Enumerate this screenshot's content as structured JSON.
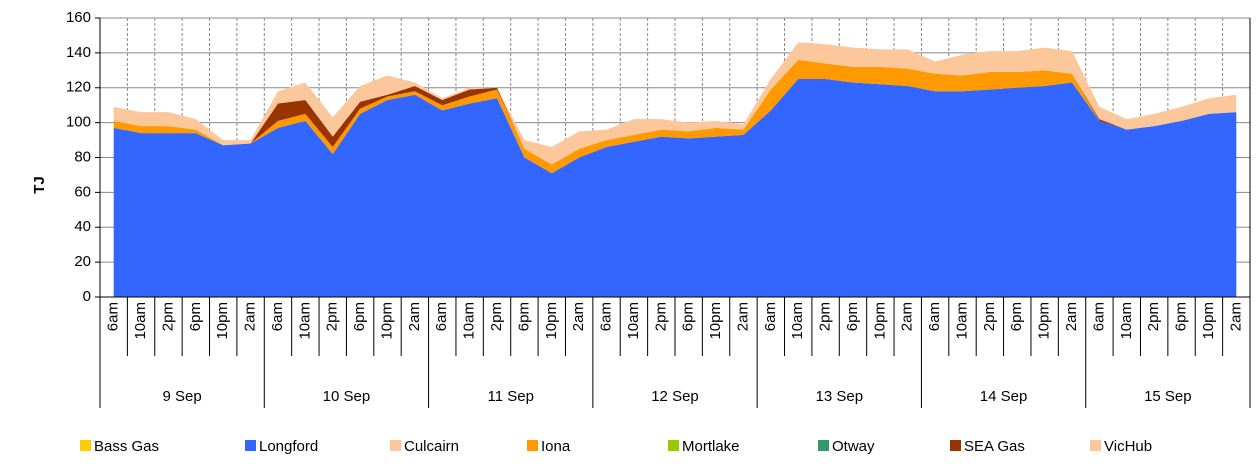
{
  "chart_data": {
    "type": "stacked_area",
    "y_label": "TJ",
    "categories": [
      "6am",
      "10am",
      "2pm",
      "6pm",
      "10pm",
      "2am",
      "6am",
      "10am",
      "2pm",
      "6pm",
      "10pm",
      "2am",
      "6am",
      "10am",
      "2pm",
      "6pm",
      "10pm",
      "2am",
      "6am",
      "10am",
      "2pm",
      "6pm",
      "10pm",
      "2am",
      "6am",
      "10am",
      "2pm",
      "6pm",
      "10pm",
      "2am",
      "6am",
      "10am",
      "2pm",
      "6pm",
      "10pm",
      "2am",
      "6am",
      "10am",
      "2pm",
      "6pm",
      "10pm",
      "2am"
    ],
    "x_groups": [
      "9 Sep",
      "10 Sep",
      "11 Sep",
      "12 Sep",
      "13 Sep",
      "14 Sep",
      "15 Sep"
    ],
    "ylim": [
      0,
      160
    ],
    "yticks": [
      0,
      20,
      40,
      60,
      80,
      100,
      120,
      140,
      160
    ],
    "grid": true,
    "series": [
      {
        "name": "Bass Gas",
        "color": "#ffcc00",
        "values": [
          0,
          0,
          0,
          0,
          0,
          0,
          0,
          0,
          0,
          0,
          0,
          0,
          0,
          0,
          0,
          0,
          0,
          0,
          0,
          0,
          0,
          0,
          0,
          0,
          0,
          0,
          0,
          0,
          0,
          0,
          0,
          0,
          0,
          0,
          0,
          0,
          0,
          0,
          0,
          0,
          0,
          0
        ]
      },
      {
        "name": "Longford",
        "color": "#3366ff",
        "values": [
          97,
          94,
          94,
          94,
          87,
          88,
          97,
          101,
          82,
          105,
          113,
          116,
          107,
          111,
          114,
          80,
          71,
          80,
          86,
          89,
          92,
          91,
          92,
          93,
          107,
          125,
          125,
          123,
          122,
          121,
          118,
          118,
          119,
          120,
          121,
          123,
          101,
          96,
          98,
          101,
          105,
          106
        ]
      },
      {
        "name": "Culcairn",
        "color": "#fcc89b",
        "values": [
          0,
          0,
          0,
          0,
          0,
          0,
          0,
          0,
          0,
          0,
          0,
          0,
          0,
          0,
          0,
          0,
          0,
          0,
          0,
          0,
          0,
          0,
          0,
          0,
          0,
          0,
          0,
          0,
          0,
          0,
          0,
          0,
          0,
          0,
          0,
          0,
          0,
          0,
          0,
          0,
          0,
          0
        ]
      },
      {
        "name": "Iona",
        "color": "#ff9900",
        "values": [
          4,
          4,
          4,
          2,
          0,
          0,
          4,
          4,
          4,
          3,
          2,
          2,
          3,
          4,
          5,
          5,
          5,
          5,
          4,
          4,
          4,
          4,
          5,
          3,
          12,
          11,
          9,
          9,
          10,
          10,
          10,
          9,
          10,
          9,
          9,
          5,
          0,
          0,
          0,
          0,
          0,
          0
        ]
      },
      {
        "name": "Mortlake",
        "color": "#99cc00",
        "values": [
          0,
          0,
          0,
          0,
          0,
          0,
          0,
          0,
          0,
          0,
          0,
          0,
          0,
          0,
          0,
          0,
          0,
          0,
          0,
          0,
          0,
          0,
          0,
          0,
          0,
          0,
          0,
          0,
          0,
          0,
          0,
          0,
          0,
          0,
          0,
          0,
          0,
          0,
          0,
          0,
          0,
          0
        ]
      },
      {
        "name": "Otway",
        "color": "#339966",
        "values": [
          0,
          0,
          0,
          0,
          0,
          0,
          0,
          0,
          0,
          0,
          0,
          0,
          0,
          0,
          0,
          0,
          0,
          0,
          0,
          0,
          0,
          0,
          0,
          0,
          0,
          0,
          0,
          0,
          0,
          0,
          0,
          0,
          0,
          0,
          0,
          0,
          0,
          0,
          0,
          0,
          0,
          0
        ]
      },
      {
        "name": "SEA Gas",
        "color": "#993300",
        "values": [
          0,
          0,
          0,
          0,
          0,
          0,
          10,
          8,
          6,
          4,
          1,
          3,
          3,
          4,
          1,
          0,
          0,
          0,
          0,
          0,
          0,
          0,
          0,
          0,
          0,
          0,
          0,
          0,
          0,
          0,
          0,
          0,
          0,
          0,
          0,
          0,
          1,
          0,
          0,
          0,
          0,
          0
        ]
      },
      {
        "name": "VicHub",
        "color": "#fcc89b",
        "values": [
          8,
          8,
          8,
          6,
          3,
          2,
          7,
          10,
          11,
          9,
          11,
          2,
          1,
          1,
          0,
          5,
          10,
          10,
          6,
          9,
          6,
          5,
          4,
          3,
          6,
          10,
          11,
          11,
          10,
          11,
          7,
          12,
          12,
          12,
          13,
          13,
          7,
          6,
          7,
          8,
          9,
          10
        ]
      }
    ]
  }
}
